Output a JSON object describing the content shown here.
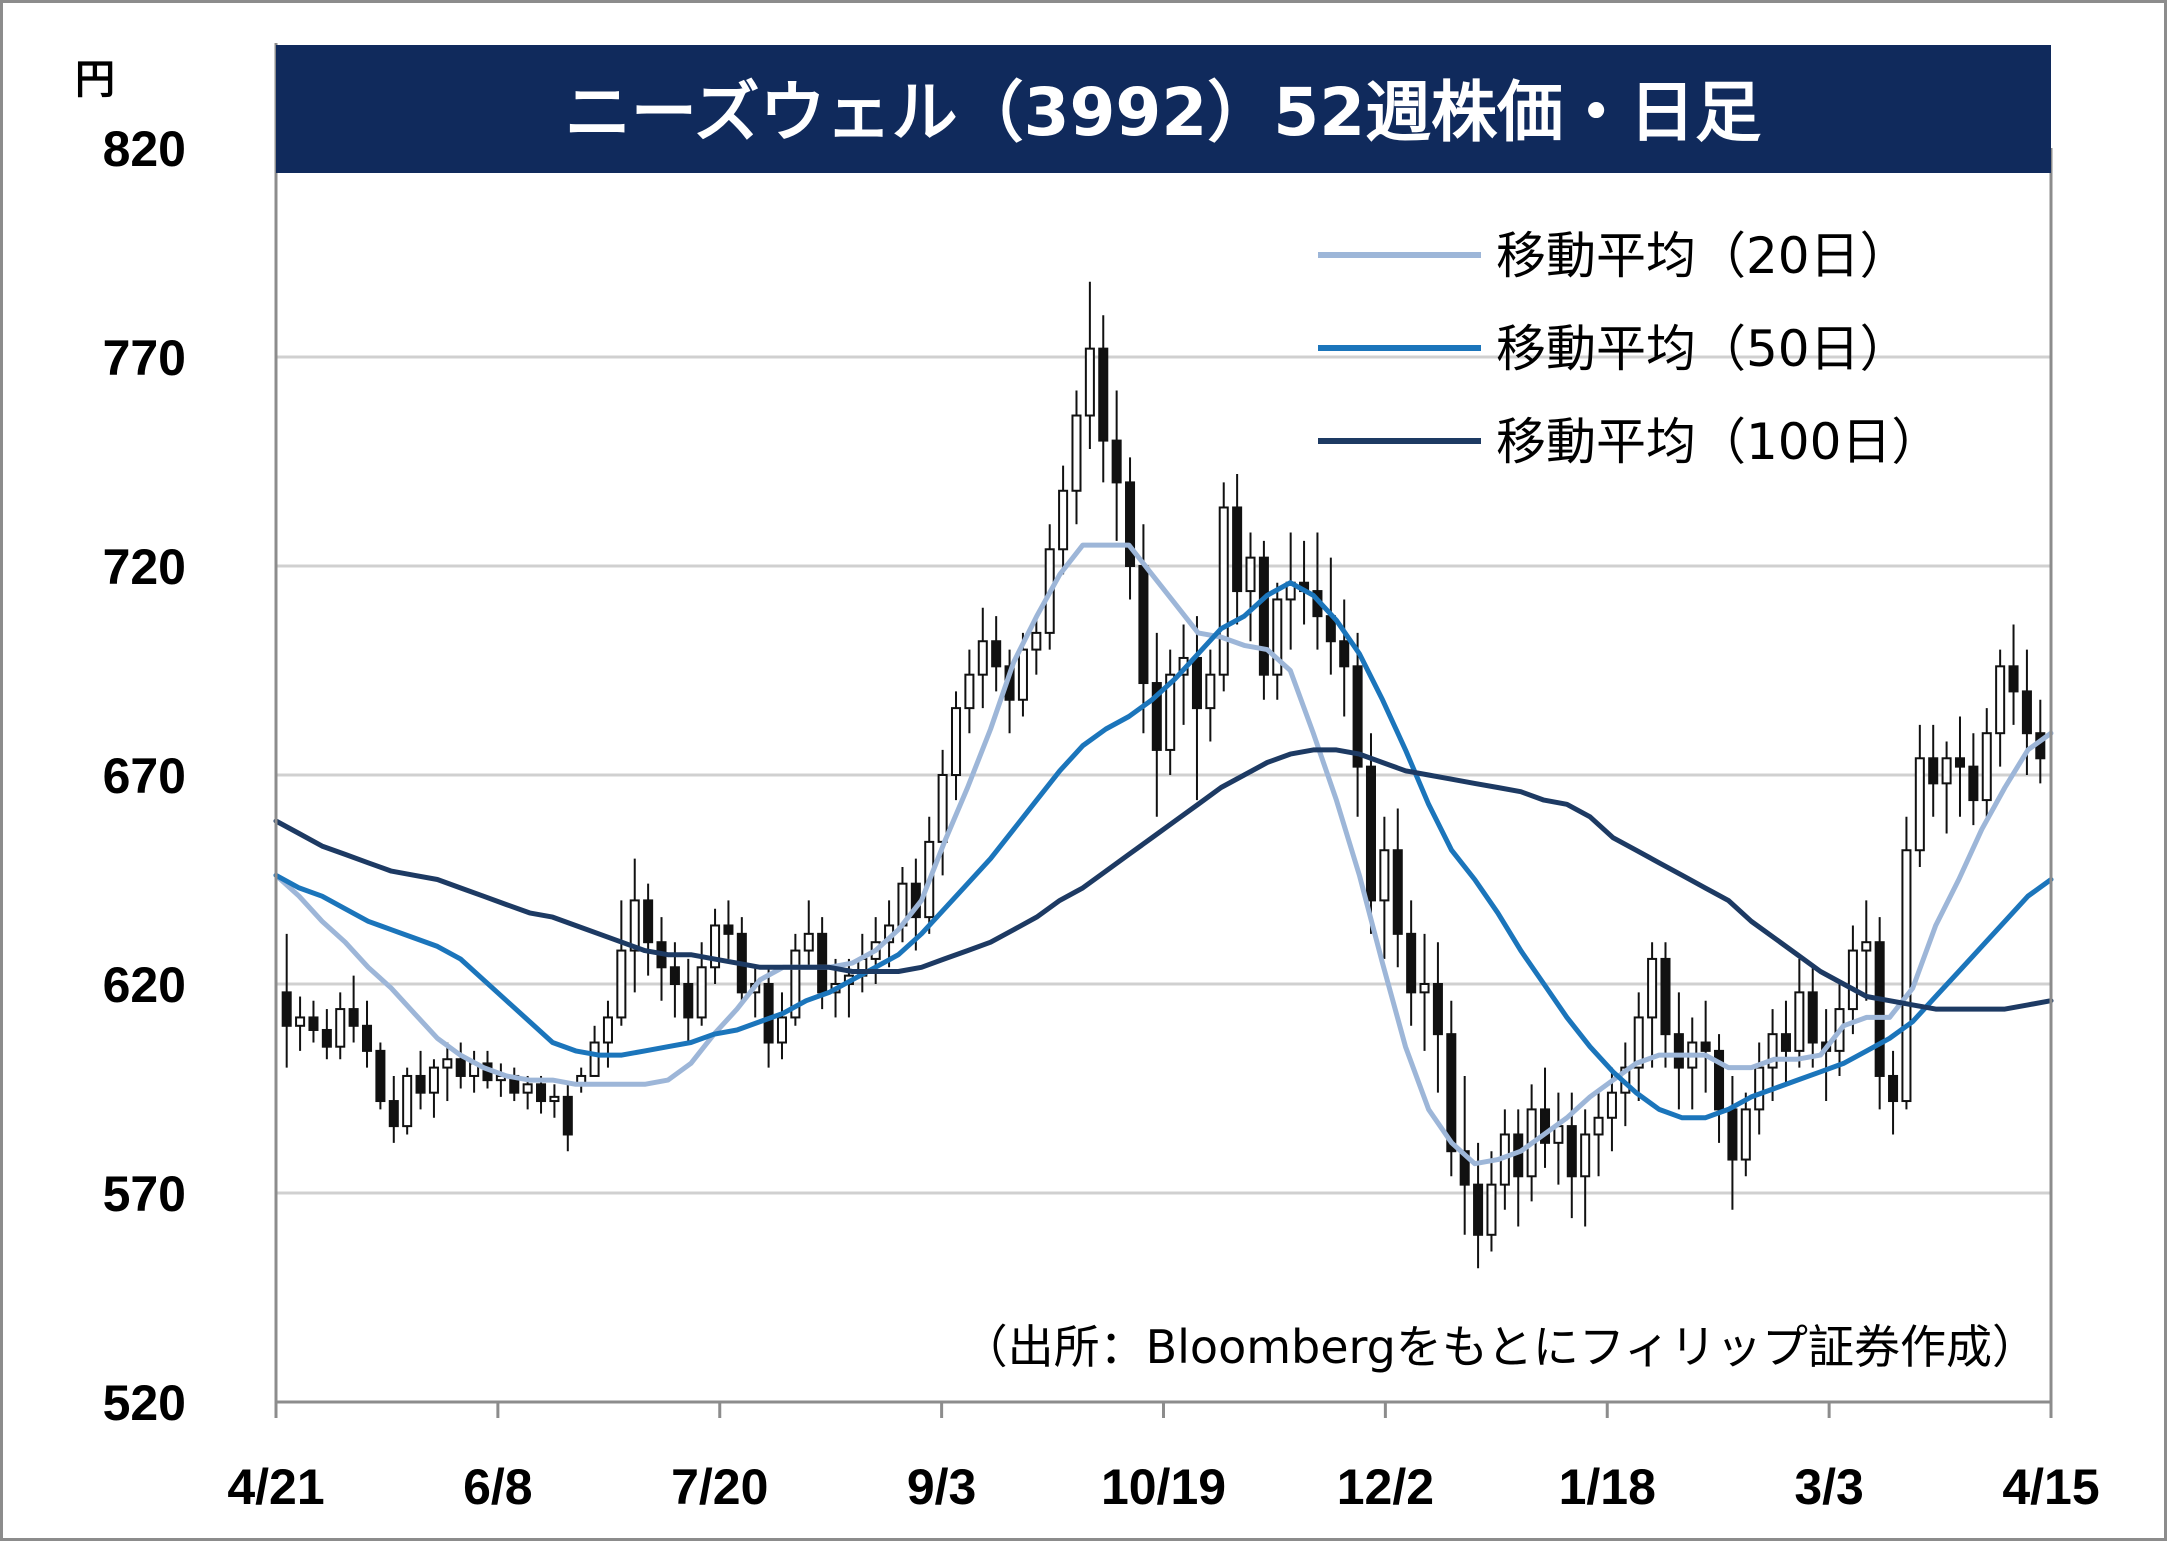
{
  "chart_data": {
    "type": "candlestick",
    "title": "ニーズウェル（3992）52週株価・日足",
    "unit": "円",
    "source_note": "（出所：Bloombergをもとにフィリップ証券作成）",
    "ylim": [
      520,
      820
    ],
    "y_ticks": [
      "820",
      "770",
      "720",
      "670",
      "620",
      "570",
      "520"
    ],
    "x_ticks": [
      "4/21",
      "6/8",
      "7/20",
      "9/3",
      "10/19",
      "12/2",
      "1/18",
      "3/3",
      "4/15"
    ],
    "grid": true,
    "legend_position": "top-right",
    "colors": {
      "title_bg": "#102a5c",
      "ma20": "#9db6d8",
      "ma50": "#1b75bb",
      "ma100": "#1d3a63",
      "candle": "#111111",
      "grid": "#d0d0d0"
    },
    "series": [
      {
        "name": "移動平均（20日）",
        "values": [
          646,
          641,
          635,
          630,
          624,
          619,
          613,
          607,
          603,
          600,
          598,
          597,
          597,
          596,
          596,
          596,
          596,
          597,
          601,
          608,
          614,
          621,
          624,
          624,
          624,
          625,
          628,
          633,
          640,
          654,
          667,
          681,
          697,
          708,
          718,
          725,
          725,
          725,
          718,
          711,
          704,
          703,
          701,
          700,
          695,
          680,
          664,
          646,
          625,
          605,
          590,
          582,
          577,
          578,
          580,
          584,
          588,
          593,
          597,
          601,
          603,
          603,
          603,
          600,
          600,
          602,
          602,
          603,
          610,
          612,
          612,
          619,
          634,
          645,
          657,
          667,
          676,
          680
        ]
      },
      {
        "name": "移動平均（50日）",
        "values": [
          646,
          643,
          641,
          638,
          635,
          633,
          631,
          629,
          626,
          621,
          616,
          611,
          606,
          604,
          603,
          603,
          604,
          605,
          606,
          608,
          609,
          611,
          613,
          616,
          618,
          621,
          624,
          627,
          632,
          638,
          644,
          650,
          657,
          664,
          671,
          677,
          681,
          684,
          688,
          693,
          699,
          705,
          708,
          713,
          716,
          713,
          707,
          699,
          688,
          676,
          663,
          652,
          645,
          637,
          628,
          620,
          612,
          605,
          599,
          594,
          590,
          588,
          588,
          590,
          593,
          595,
          597,
          599,
          601,
          604,
          607,
          611,
          617,
          623,
          629,
          635,
          641,
          645
        ]
      },
      {
        "name": "移動平均（100日）",
        "values": [
          659,
          656,
          653,
          651,
          649,
          647,
          646,
          645,
          643,
          641,
          639,
          637,
          636,
          634,
          632,
          630,
          628,
          627,
          627,
          626,
          625,
          624,
          624,
          624,
          624,
          623,
          623,
          623,
          624,
          626,
          628,
          630,
          633,
          636,
          640,
          643,
          647,
          651,
          655,
          659,
          663,
          667,
          670,
          673,
          675,
          676,
          676,
          675,
          673,
          671,
          670,
          669,
          668,
          667,
          666,
          664,
          663,
          660,
          655,
          652,
          649,
          646,
          643,
          640,
          635,
          631,
          627,
          623,
          620,
          617,
          616,
          615,
          614,
          614,
          614,
          614,
          615,
          616
        ]
      }
    ],
    "ohlc": [
      [
        618,
        632,
        600,
        610
      ],
      [
        610,
        617,
        604,
        612
      ],
      [
        612,
        616,
        606,
        609
      ],
      [
        609,
        614,
        602,
        605
      ],
      [
        605,
        618,
        602,
        614
      ],
      [
        614,
        622,
        606,
        610
      ],
      [
        610,
        616,
        600,
        604
      ],
      [
        604,
        606,
        590,
        592
      ],
      [
        592,
        598,
        582,
        586
      ],
      [
        586,
        600,
        584,
        598
      ],
      [
        598,
        604,
        590,
        594
      ],
      [
        594,
        602,
        588,
        600
      ],
      [
        600,
        606,
        592,
        602
      ],
      [
        602,
        606,
        595,
        598
      ],
      [
        598,
        604,
        594,
        601
      ],
      [
        601,
        604,
        595,
        597
      ],
      [
        597,
        601,
        593,
        598
      ],
      [
        598,
        600,
        592,
        594
      ],
      [
        594,
        598,
        590,
        596
      ],
      [
        596,
        598,
        589,
        592
      ],
      [
        592,
        596,
        588,
        593
      ],
      [
        593,
        596,
        580,
        584
      ],
      [
        596,
        600,
        594,
        598
      ],
      [
        598,
        610,
        598,
        606
      ],
      [
        606,
        616,
        600,
        612
      ],
      [
        612,
        640,
        610,
        628
      ],
      [
        628,
        650,
        618,
        640
      ],
      [
        640,
        644,
        622,
        630
      ],
      [
        630,
        636,
        616,
        624
      ],
      [
        624,
        630,
        612,
        620
      ],
      [
        620,
        626,
        606,
        612
      ],
      [
        612,
        630,
        610,
        624
      ],
      [
        624,
        638,
        620,
        634
      ],
      [
        634,
        640,
        626,
        632
      ],
      [
        632,
        636,
        616,
        618
      ],
      [
        618,
        624,
        612,
        620
      ],
      [
        620,
        624,
        600,
        606
      ],
      [
        606,
        618,
        602,
        612
      ],
      [
        612,
        632,
        610,
        628
      ],
      [
        628,
        640,
        624,
        632
      ],
      [
        632,
        636,
        614,
        618
      ],
      [
        618,
        626,
        612,
        620
      ],
      [
        620,
        626,
        612,
        622
      ],
      [
        622,
        632,
        618,
        626
      ],
      [
        626,
        636,
        620,
        630
      ],
      [
        630,
        640,
        624,
        634
      ],
      [
        634,
        648,
        630,
        644
      ],
      [
        644,
        650,
        628,
        636
      ],
      [
        636,
        660,
        632,
        654
      ],
      [
        654,
        676,
        646,
        670
      ],
      [
        670,
        690,
        664,
        686
      ],
      [
        686,
        700,
        680,
        694
      ],
      [
        694,
        710,
        686,
        702
      ],
      [
        702,
        708,
        690,
        696
      ],
      [
        696,
        700,
        680,
        688
      ],
      [
        688,
        704,
        684,
        700
      ],
      [
        700,
        708,
        694,
        704
      ],
      [
        704,
        730,
        700,
        724
      ],
      [
        724,
        744,
        718,
        738
      ],
      [
        738,
        762,
        730,
        756
      ],
      [
        756,
        788,
        748,
        772
      ],
      [
        772,
        780,
        740,
        750
      ],
      [
        750,
        762,
        726,
        740
      ],
      [
        740,
        746,
        712,
        720
      ],
      [
        720,
        730,
        680,
        692
      ],
      [
        692,
        704,
        660,
        676
      ],
      [
        676,
        700,
        670,
        694
      ],
      [
        694,
        706,
        682,
        698
      ],
      [
        698,
        708,
        664,
        686
      ],
      [
        686,
        700,
        678,
        694
      ],
      [
        694,
        740,
        690,
        734
      ],
      [
        734,
        742,
        706,
        714
      ],
      [
        714,
        728,
        702,
        722
      ],
      [
        722,
        726,
        688,
        694
      ],
      [
        694,
        716,
        688,
        712
      ],
      [
        712,
        728,
        700,
        716
      ],
      [
        716,
        726,
        706,
        714
      ],
      [
        714,
        728,
        700,
        708
      ],
      [
        708,
        722,
        694,
        702
      ],
      [
        702,
        712,
        684,
        696
      ],
      [
        696,
        704,
        660,
        672
      ],
      [
        672,
        680,
        632,
        640
      ],
      [
        640,
        660,
        626,
        652
      ],
      [
        652,
        662,
        624,
        632
      ],
      [
        632,
        640,
        610,
        618
      ],
      [
        618,
        632,
        604,
        620
      ],
      [
        620,
        630,
        594,
        608
      ],
      [
        608,
        616,
        574,
        580
      ],
      [
        580,
        598,
        560,
        572
      ],
      [
        572,
        582,
        552,
        560
      ],
      [
        560,
        580,
        556,
        572
      ],
      [
        572,
        590,
        566,
        584
      ],
      [
        584,
        590,
        562,
        574
      ],
      [
        574,
        596,
        568,
        590
      ],
      [
        590,
        600,
        576,
        582
      ],
      [
        582,
        594,
        572,
        586
      ],
      [
        586,
        594,
        564,
        574
      ],
      [
        574,
        590,
        562,
        584
      ],
      [
        584,
        594,
        574,
        588
      ],
      [
        588,
        600,
        580,
        594
      ],
      [
        594,
        606,
        586,
        600
      ],
      [
        600,
        618,
        592,
        612
      ],
      [
        612,
        630,
        600,
        626
      ],
      [
        626,
        630,
        600,
        608
      ],
      [
        608,
        618,
        590,
        600
      ],
      [
        600,
        612,
        590,
        606
      ],
      [
        606,
        616,
        594,
        604
      ],
      [
        604,
        608,
        582,
        590
      ],
      [
        590,
        598,
        566,
        578
      ],
      [
        578,
        594,
        574,
        590
      ],
      [
        590,
        606,
        584,
        600
      ],
      [
        600,
        614,
        592,
        608
      ],
      [
        608,
        616,
        596,
        604
      ],
      [
        604,
        626,
        600,
        618
      ],
      [
        618,
        624,
        600,
        606
      ],
      [
        606,
        614,
        592,
        604
      ],
      [
        604,
        620,
        598,
        614
      ],
      [
        614,
        634,
        608,
        628
      ],
      [
        628,
        640,
        616,
        630
      ],
      [
        630,
        636,
        590,
        598
      ],
      [
        598,
        604,
        584,
        592
      ],
      [
        592,
        660,
        590,
        652
      ],
      [
        652,
        682,
        648,
        674
      ],
      [
        674,
        682,
        660,
        668
      ],
      [
        668,
        678,
        656,
        674
      ],
      [
        674,
        684,
        660,
        672
      ],
      [
        672,
        680,
        658,
        664
      ],
      [
        664,
        686,
        660,
        680
      ],
      [
        680,
        700,
        672,
        696
      ],
      [
        696,
        706,
        682,
        690
      ],
      [
        690,
        700,
        670,
        680
      ],
      [
        680,
        688,
        668,
        674
      ]
    ]
  }
}
